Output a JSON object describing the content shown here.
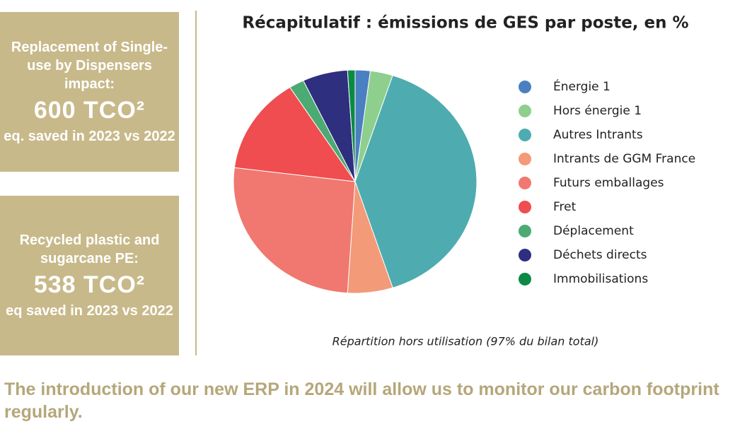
{
  "panels": [
    {
      "text": "Replacement of Single-use by Dispensers impact:",
      "figure": "600 TCO²",
      "note": "eq. saved in 2023 vs 2022"
    },
    {
      "text": "Recycled plastic and sugarcane PE:",
      "figure": "538 TCO²",
      "note": "eq saved in 2023 vs 2022"
    }
  ],
  "footer": "The introduction of our new ERP in 2024 will allow us to monitor our carbon footprint regularly.",
  "chart_data": {
    "type": "pie",
    "title": "Récapitulatif : émissions de GES par poste, en %",
    "subtitle": "Répartition hors utilisation (97% du bilan total)",
    "categories": [
      "Énergie 1",
      "Hors énergie 1",
      "Autres Intrants",
      "Intrants de GGM France",
      "Futurs emballages",
      "Fret",
      "Déplacement",
      "Déchets directs",
      "Immobilisations"
    ],
    "values": [
      2,
      3,
      40,
      6,
      26,
      14,
      2,
      6,
      1
    ],
    "colors": [
      "#4a7fc1",
      "#8ecf8e",
      "#4eacb0",
      "#f39a78",
      "#f07870",
      "#ef4d4f",
      "#4caa73",
      "#2e2f7e",
      "#0b8a45"
    ]
  }
}
